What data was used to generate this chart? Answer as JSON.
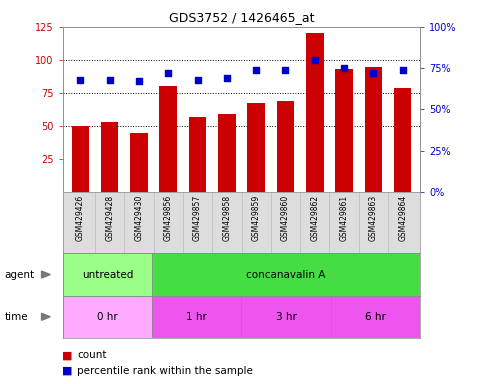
{
  "title": "GDS3752 / 1426465_at",
  "samples": [
    "GSM429426",
    "GSM429428",
    "GSM429430",
    "GSM429856",
    "GSM429857",
    "GSM429858",
    "GSM429859",
    "GSM429860",
    "GSM429862",
    "GSM429861",
    "GSM429863",
    "GSM429864"
  ],
  "count_values": [
    50,
    53,
    45,
    80,
    57,
    59,
    67,
    69,
    120,
    93,
    95,
    79
  ],
  "percentile_values": [
    68,
    68,
    67,
    72,
    68,
    69,
    74,
    74,
    80,
    75,
    72,
    74
  ],
  "left_ylim": [
    0,
    125
  ],
  "left_yticks": [
    25,
    50,
    75,
    100,
    125
  ],
  "right_ylim": [
    0,
    100
  ],
  "right_yticks": [
    0,
    25,
    50,
    75,
    100
  ],
  "right_yticklabels": [
    "0%",
    "25%",
    "50%",
    "75%",
    "100%"
  ],
  "hlines": [
    50,
    75,
    100
  ],
  "bar_color": "#cc0000",
  "dot_color": "#0000cc",
  "agent_groups": [
    {
      "label": "untreated",
      "start": 0,
      "end": 3,
      "color": "#99ff88"
    },
    {
      "label": "concanavalin A",
      "start": 3,
      "end": 12,
      "color": "#44dd44"
    }
  ],
  "time_colors_list": [
    "#ffaaff",
    "#ee55ee",
    "#ee55ee",
    "#ee55ee"
  ],
  "time_groups": [
    {
      "label": "0 hr",
      "start": 0,
      "end": 3
    },
    {
      "label": "1 hr",
      "start": 3,
      "end": 6
    },
    {
      "label": "3 hr",
      "start": 6,
      "end": 9
    },
    {
      "label": "6 hr",
      "start": 9,
      "end": 12
    }
  ],
  "label_agent": "agent",
  "label_time": "time",
  "legend_count": "count",
  "legend_percentile": "percentile rank within the sample",
  "bg_color": "#ffffff",
  "sample_bg_color": "#dddddd",
  "title_fontsize": 9,
  "tick_fontsize": 7,
  "label_fontsize": 7.5,
  "row_label_fontsize": 7.5,
  "sample_fontsize": 5.5
}
